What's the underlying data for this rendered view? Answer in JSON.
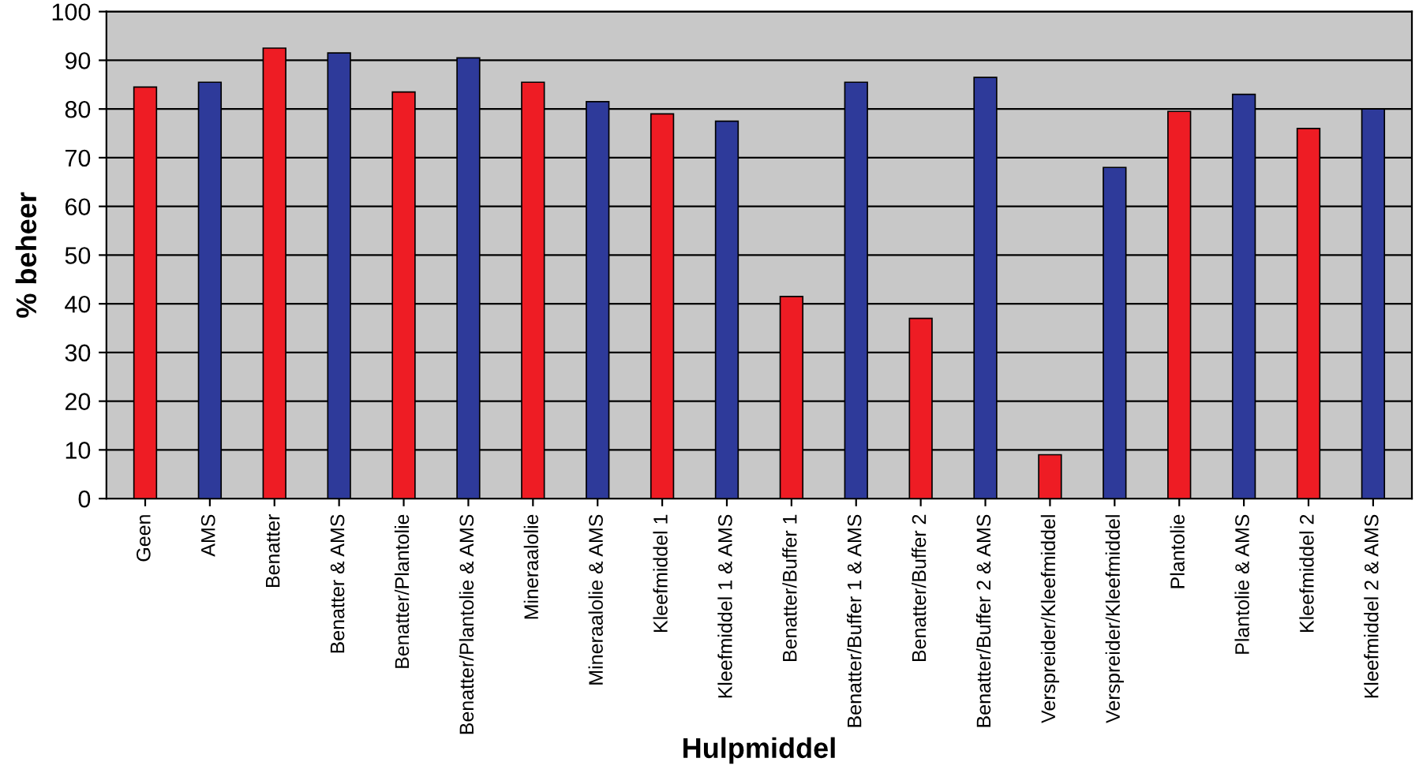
{
  "chart_data": {
    "type": "bar",
    "xlabel": "Hulpmiddel",
    "ylabel": "% beheer",
    "categories": [
      "Geen",
      "AMS",
      "Benatter",
      "Benatter & AMS",
      "Benatter/Plantolie",
      "Benatter/Plantolie & AMS",
      "Mineraalolie",
      "Mineraalolie & AMS",
      "Kleefmiddel 1",
      "Kleefmiddel 1 & AMS",
      "Benatter/Buffer 1",
      "Benatter/Buffer 1 & AMS",
      "Benatter/Buffer 2",
      "Benatter/Buffer 2 & AMS",
      "Verspreider/Kleefmiddel",
      "Verspreider/Kleefmiddel",
      "Plantolie",
      "Plantolie & AMS",
      "Kleefmiddel 2",
      "Kleefmiddel 2 & AMS"
    ],
    "values": [
      84.5,
      85.5,
      92.5,
      91.5,
      83.5,
      90.5,
      85.5,
      81.5,
      79,
      77.5,
      41.5,
      85.5,
      37,
      86.5,
      9,
      68,
      79.5,
      83,
      76,
      80
    ],
    "colors": [
      "#ee1c24",
      "#2e3a9a",
      "#ee1c24",
      "#2e3a9a",
      "#ee1c24",
      "#2e3a9a",
      "#ee1c24",
      "#2e3a9a",
      "#ee1c24",
      "#2e3a9a",
      "#ee1c24",
      "#2e3a9a",
      "#ee1c24",
      "#2e3a9a",
      "#ee1c24",
      "#2e3a9a",
      "#ee1c24",
      "#2e3a9a",
      "#ee1c24",
      "#2e3a9a"
    ],
    "ylim": [
      0,
      100
    ],
    "yticks": [
      0,
      10,
      20,
      30,
      40,
      50,
      60,
      70,
      80,
      90,
      100
    ],
    "grid": "y"
  }
}
